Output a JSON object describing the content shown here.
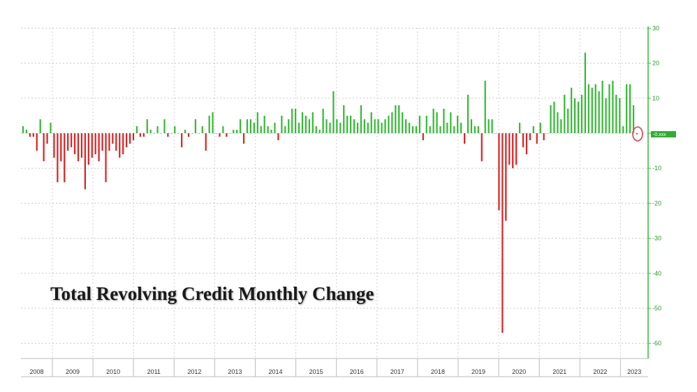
{
  "chart_data": {
    "type": "bar",
    "title": "Total Revolving Credit Monthly Change",
    "xlabel": "",
    "ylabel": "",
    "ylim": [
      -65,
      30
    ],
    "yticks": [
      30,
      20,
      10,
      0,
      -10,
      -20,
      -30,
      -40,
      -50,
      -60
    ],
    "ytick_labels": [
      "30",
      "20",
      "10",
      "",
      "-10",
      "-20",
      "-30",
      "-40",
      "-50",
      "-60"
    ],
    "x_labels": [
      "2008",
      "2009",
      "2010",
      "2011",
      "2012",
      "2013",
      "2014",
      "2015",
      "2016",
      "2017",
      "2018",
      "2019",
      "2020",
      "2021",
      "2022",
      "2023"
    ],
    "positive_color": "#33bb33",
    "negative_color": "#dd2222",
    "last_value_label": "-0.xxx",
    "last_value_marker": "red-circle",
    "grid": true,
    "series": [
      {
        "values": [
          2,
          1,
          -1,
          -1,
          -5,
          4,
          -8,
          -3,
          3,
          -7,
          -14,
          -8,
          -14,
          -5,
          -4,
          -6,
          -8,
          -7,
          -16,
          -9,
          -7,
          -6,
          -8,
          -5,
          -14,
          -5,
          -3,
          -5,
          -7,
          -6,
          -4,
          -3,
          -2,
          2,
          -1,
          -1,
          4,
          1,
          0,
          2,
          0,
          4,
          -1,
          0,
          2,
          0,
          -4,
          1,
          -1,
          0,
          4,
          0,
          2,
          -5,
          5,
          6,
          0,
          -1,
          2,
          -1,
          0,
          1,
          1,
          4,
          -3,
          4,
          4,
          3,
          6,
          2,
          5,
          2,
          1,
          3,
          -2,
          5,
          2,
          4,
          7,
          7,
          3,
          6,
          5,
          4,
          6,
          2,
          1,
          7,
          4,
          3,
          12,
          4,
          3,
          8,
          5,
          5,
          4,
          3,
          8,
          4,
          3,
          6,
          4,
          4,
          3,
          4,
          5,
          6,
          8,
          8,
          6,
          4,
          3,
          2,
          2,
          5,
          -2,
          5,
          2,
          7,
          6,
          2,
          7,
          3,
          6,
          2,
          5,
          3,
          -3,
          11,
          4,
          2,
          2,
          -8,
          15,
          4,
          4,
          0,
          -22,
          -57,
          -25,
          -9,
          -10,
          -9,
          3,
          -4,
          -6,
          -2,
          2,
          -3,
          3,
          -2,
          0,
          8,
          9,
          6,
          4,
          11,
          7,
          13,
          10,
          9,
          11,
          23,
          14,
          13,
          14,
          12,
          15,
          10,
          14,
          15,
          11,
          10,
          2,
          14,
          14,
          8,
          -0.3
        ]
      }
    ]
  }
}
